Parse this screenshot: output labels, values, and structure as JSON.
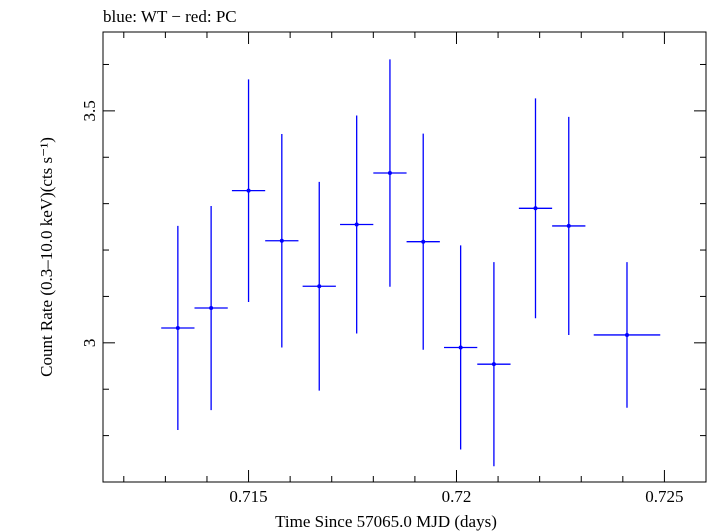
{
  "chart_data": {
    "type": "scatter",
    "title": "blue: WT − red: PC",
    "xlabel": "Time Since 57065.0 MJD (days)",
    "ylabel": "Count Rate (0.3–10.0 keV)(cts s⁻¹)",
    "xlim": [
      0.7115,
      0.726
    ],
    "ylim": [
      2.7,
      3.67
    ],
    "x_ticks": [
      {
        "value": 0.715,
        "label": "0.715"
      },
      {
        "value": 0.72,
        "label": "0.72"
      },
      {
        "value": 0.725,
        "label": "0.725"
      }
    ],
    "y_ticks": [
      {
        "value": 3.0,
        "label": "3"
      },
      {
        "value": 3.5,
        "label": "3.5"
      }
    ],
    "grid": false,
    "series": [
      {
        "color": "#0000ff",
        "points": [
          {
            "x": 0.7133,
            "y": 3.032,
            "xerr": 0.0004,
            "yerr": 0.22
          },
          {
            "x": 0.7141,
            "y": 3.075,
            "xerr": 0.0004,
            "yerr": 0.22
          },
          {
            "x": 0.715,
            "y": 3.328,
            "xerr": 0.0004,
            "yerr": 0.24
          },
          {
            "x": 0.7158,
            "y": 3.22,
            "xerr": 0.0004,
            "yerr": 0.23
          },
          {
            "x": 0.7167,
            "y": 3.122,
            "xerr": 0.0004,
            "yerr": 0.225
          },
          {
            "x": 0.7176,
            "y": 3.255,
            "xerr": 0.0004,
            "yerr": 0.235
          },
          {
            "x": 0.7184,
            "y": 3.366,
            "xerr": 0.0004,
            "yerr": 0.245
          },
          {
            "x": 0.7192,
            "y": 3.218,
            "xerr": 0.0004,
            "yerr": 0.233
          },
          {
            "x": 0.7201,
            "y": 2.99,
            "xerr": 0.0004,
            "yerr": 0.22
          },
          {
            "x": 0.7209,
            "y": 2.954,
            "xerr": 0.0004,
            "yerr": 0.22
          },
          {
            "x": 0.7219,
            "y": 3.29,
            "xerr": 0.0004,
            "yerr": 0.237
          },
          {
            "x": 0.7227,
            "y": 3.252,
            "xerr": 0.0004,
            "yerr": 0.235
          },
          {
            "x": 0.7241,
            "y": 3.017,
            "xerr": 0.0008,
            "yerr": 0.157
          }
        ]
      }
    ]
  }
}
